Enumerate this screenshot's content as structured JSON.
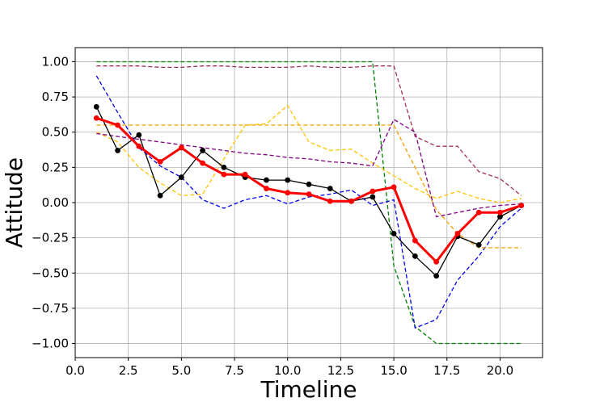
{
  "chart_data": {
    "type": "line",
    "xlabel": "Timeline",
    "ylabel": "Attitude",
    "xlim": [
      0.0,
      22.0
    ],
    "ylim": [
      -1.1,
      1.1
    ],
    "xticks": [
      0.0,
      2.5,
      5.0,
      7.5,
      10.0,
      12.5,
      15.0,
      17.5,
      20.0
    ],
    "xtick_labels": [
      "0.0",
      "2.5",
      "5.0",
      "7.5",
      "10.0",
      "12.5",
      "15.0",
      "17.5",
      "20.0"
    ],
    "yticks": [
      1.0,
      0.75,
      0.5,
      0.25,
      0.0,
      -0.25,
      -0.5,
      -0.75,
      -1.0
    ],
    "ytick_labels": [
      "1.00",
      "0.75",
      "0.50",
      "0.25",
      "0.00",
      "−0.25",
      "−0.50",
      "−0.75",
      "−1.00"
    ],
    "grid": true,
    "x": [
      1,
      2,
      3,
      4,
      5,
      6,
      7,
      8,
      9,
      10,
      11,
      12,
      13,
      14,
      15,
      16,
      17,
      18,
      19,
      20,
      21
    ],
    "series": [
      {
        "color": "#008000",
        "style": "dashed",
        "values": [
          1.0,
          1.0,
          1.0,
          1.0,
          1.0,
          1.0,
          1.0,
          1.0,
          1.0,
          1.0,
          1.0,
          1.0,
          1.0,
          1.0,
          -0.45,
          -0.88,
          -1.0,
          -1.0,
          -1.0,
          -1.0,
          -1.0
        ]
      },
      {
        "color": "#a0304a",
        "style": "dashed",
        "values": [
          0.97,
          0.97,
          0.97,
          0.96,
          0.96,
          0.97,
          0.97,
          0.96,
          0.96,
          0.96,
          0.97,
          0.96,
          0.96,
          0.97,
          0.97,
          0.47,
          0.4,
          0.4,
          0.22,
          0.17,
          0.05
        ]
      },
      {
        "color": "#0000ee",
        "style": "dashed",
        "values": [
          0.9,
          0.64,
          0.39,
          0.26,
          0.18,
          0.02,
          -0.04,
          0.02,
          0.05,
          -0.01,
          0.04,
          0.06,
          0.09,
          -0.02,
          0.02,
          -0.89,
          -0.83,
          -0.55,
          -0.38,
          -0.17,
          -0.04
        ]
      },
      {
        "color": "#ffc400",
        "style": "dashed",
        "values": [
          0.5,
          0.43,
          0.25,
          0.14,
          0.05,
          0.06,
          0.31,
          0.55,
          0.56,
          0.69,
          0.43,
          0.37,
          0.38,
          0.28,
          0.19,
          0.1,
          0.03,
          0.08,
          0.03,
          0.0,
          0.03
        ]
      },
      {
        "color": "#f5a000",
        "style": "dashed",
        "values": [
          0.55,
          0.55,
          0.55,
          0.55,
          0.55,
          0.55,
          0.55,
          0.55,
          0.55,
          0.55,
          0.55,
          0.55,
          0.55,
          0.55,
          0.55,
          0.25,
          -0.05,
          -0.22,
          -0.32,
          -0.32,
          -0.32
        ]
      },
      {
        "color": "#800080",
        "style": "dashed",
        "values": [
          0.49,
          0.47,
          0.45,
          0.43,
          0.41,
          0.39,
          0.37,
          0.35,
          0.34,
          0.32,
          0.31,
          0.29,
          0.28,
          0.26,
          0.59,
          0.5,
          -0.1,
          -0.07,
          -0.04,
          -0.02,
          -0.01
        ]
      },
      {
        "color": "#000000",
        "style": "solid-markers",
        "values": [
          0.68,
          0.37,
          0.48,
          0.05,
          0.18,
          0.37,
          0.25,
          0.18,
          0.16,
          0.16,
          0.13,
          0.1,
          0.01,
          0.04,
          -0.22,
          -0.38,
          -0.52,
          -0.24,
          -0.3,
          -0.1,
          -0.02
        ]
      },
      {
        "color": "#ff0000",
        "style": "bold-markers",
        "values": [
          0.6,
          0.55,
          0.4,
          0.29,
          0.39,
          0.28,
          0.2,
          0.2,
          0.1,
          0.07,
          0.06,
          0.01,
          0.01,
          0.08,
          0.11,
          -0.27,
          -0.42,
          -0.22,
          -0.07,
          -0.07,
          -0.02
        ]
      }
    ]
  }
}
